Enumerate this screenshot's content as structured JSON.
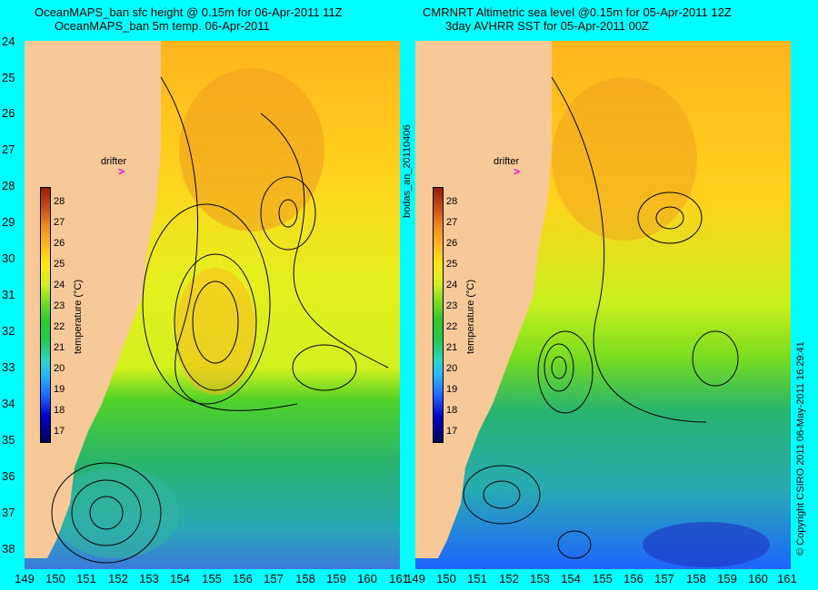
{
  "left_panel": {
    "title_line1": "OceanMAPS_ban sfc height @ 0.15m for 06-Apr-2011 11Z",
    "title_line2": "OceanMAPS_ban 5m temp. 06-Apr-2011"
  },
  "right_panel": {
    "title_line1": "CMRNRT Altimetric sea level  @0.15m  for 05-Apr-2011 12Z",
    "title_line2": "3day AVHRR SST for 05-Apr-2011 00Z"
  },
  "center_side_label": "bodas_an_20110406",
  "right_side_label": "© Copyright CSIRO 2011   06-May-2011 16:29:41",
  "y_axis_labels": [
    "24",
    "25",
    "26",
    "27",
    "28",
    "29",
    "30",
    "31",
    "32",
    "33",
    "34",
    "35",
    "36",
    "37",
    "38"
  ],
  "x_axis_left": [
    "149",
    "150",
    "151",
    "152",
    "153",
    "154",
    "155",
    "156",
    "157",
    "158",
    "159",
    "160",
    "161"
  ],
  "x_axis_right": [
    "149",
    "150",
    "151",
    "152",
    "153",
    "154",
    "155",
    "156",
    "157",
    "158",
    "159",
    "160",
    "161"
  ],
  "colorbar": {
    "label": "temperature (°C)",
    "ticks": [
      "28",
      "27",
      "26",
      "25",
      "24",
      "23",
      "22",
      "21",
      "20",
      "19",
      "18",
      "17"
    ]
  },
  "drifter_label": "drifter",
  "drifter_marker": ">",
  "colors": {
    "land": "#f7c898",
    "background": "#00ffff",
    "contour": "#000000",
    "bathymetry": "#40e0d0",
    "drifter": "#e000e0"
  },
  "map": {
    "lon_range": [
      149,
      161
    ],
    "lat_range": [
      24,
      38.4
    ],
    "lat_axis_inverted": true
  }
}
